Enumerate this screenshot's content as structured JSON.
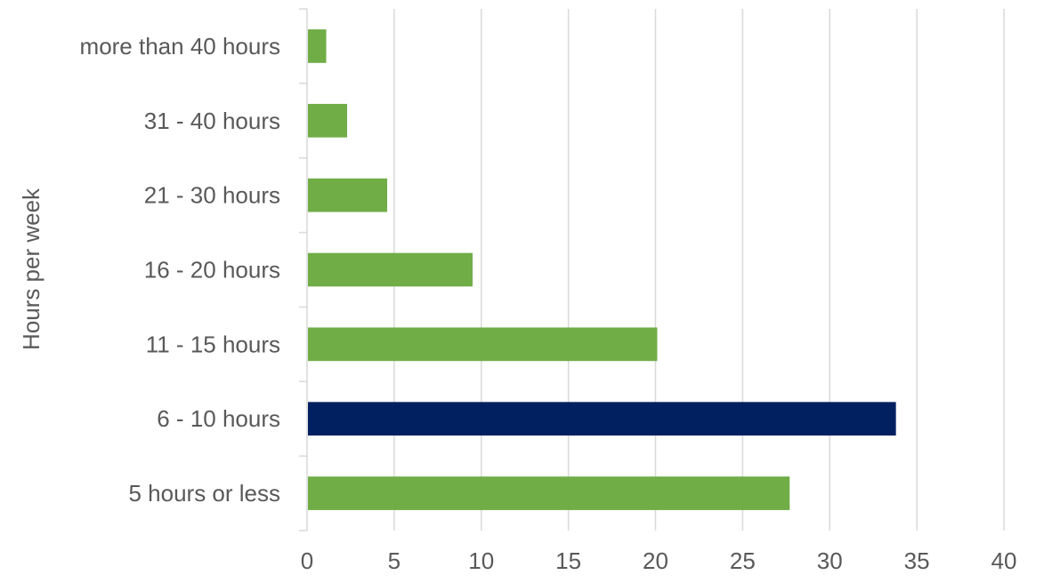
{
  "chart_data": {
    "type": "bar",
    "orientation": "horizontal",
    "title": "",
    "xlabel": "",
    "ylabel": "Hours per week",
    "categories": [
      "5 hours or less",
      "6 - 10 hours",
      "11 - 15 hours",
      "16 - 20 hours",
      "21 - 30 hours",
      "31 - 40 hours",
      "more than 40 hours"
    ],
    "values": [
      27.7,
      33.8,
      20.1,
      9.5,
      4.6,
      2.3,
      1.1
    ],
    "highlight_index": 1,
    "xlim": [
      0,
      40
    ],
    "xticks": [
      0,
      5,
      10,
      15,
      20,
      25,
      30,
      35,
      40
    ],
    "grid": true,
    "legend": "none",
    "colors": {
      "bar": "#70ad47",
      "highlight": "#002060",
      "grid": "#d9d9d9",
      "axis_text": "#595959"
    }
  }
}
